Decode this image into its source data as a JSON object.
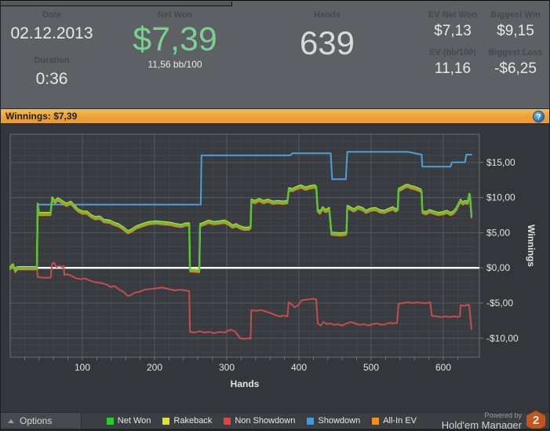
{
  "header": {
    "date_label": "Date",
    "date_value": "02.12.2013",
    "duration_label": "Duration",
    "duration_value": "0:36",
    "net_won_label": "Net Won",
    "net_won_value": "$7,39",
    "net_won_sub": "11,56 bb/100",
    "hands_label": "Hands",
    "hands_value": "639",
    "ev_net_won_label": "EV Net Won",
    "ev_net_won_value": "$7,13",
    "biggest_win_label": "Biggest Win",
    "biggest_win_value": "$9,15",
    "ev_bb_label": "EV (bb/100)",
    "ev_bb_value": "11,16",
    "biggest_loss_label": "Biggest Loss",
    "biggest_loss_value": "-$6,25"
  },
  "banner": {
    "text": "Winnings: $7,39",
    "help_icon": "?"
  },
  "chart_data": {
    "type": "line",
    "xlabel": "Hands",
    "ylabel": "Winnings",
    "xlim": [
      0,
      650
    ],
    "ylim": [
      -12.7,
      19.0
    ],
    "x_ticks": [
      100,
      200,
      300,
      400,
      500,
      600
    ],
    "y_ticks": [
      {
        "v": 15,
        "label": "$15,00"
      },
      {
        "v": 10,
        "label": "$10,00"
      },
      {
        "v": 5,
        "label": "$5,00"
      },
      {
        "v": 0,
        "label": "$0,00"
      },
      {
        "v": -5,
        "label": "-$5,00"
      },
      {
        "v": -10,
        "label": "-$10,00"
      }
    ],
    "grid": {
      "x_minor": 20,
      "x_major": 100,
      "y_minor": 1,
      "y_major": 5,
      "on": true
    },
    "zero_line": {
      "value": 0,
      "color": "#ffffff"
    },
    "legend_position": "bottom",
    "colors": {
      "plot_bg": "#383c40",
      "panel_bg": "#33373b",
      "grid_minor": "#41454a",
      "grid_major": "#55585c",
      "border": "#62656a",
      "tick_text": "#e2e3e5"
    },
    "series": [
      {
        "name": "Showdown",
        "color": "#4e9fd6",
        "width": 2,
        "points": [
          [
            0,
            0
          ],
          [
            37,
            0
          ],
          [
            38,
            9.0
          ],
          [
            264,
            9.0
          ],
          [
            265,
            16.0
          ],
          [
            388,
            16.0
          ],
          [
            391,
            16.3
          ],
          [
            444,
            16.3
          ],
          [
            446,
            12.6
          ],
          [
            465,
            12.6
          ],
          [
            467,
            16.5
          ],
          [
            551,
            16.5
          ],
          [
            570,
            16.1
          ],
          [
            571,
            14.4
          ],
          [
            610,
            14.4
          ],
          [
            612,
            15.0
          ],
          [
            630,
            15.0
          ],
          [
            632,
            16.1
          ],
          [
            639,
            16.1
          ]
        ]
      },
      {
        "name": "Non Showdown",
        "color": "#ca4b4b",
        "width": 2,
        "points": [
          [
            0,
            0
          ],
          [
            37,
            0
          ],
          [
            38,
            -1.3
          ],
          [
            45,
            -1.4
          ],
          [
            56,
            -1.4
          ],
          [
            58,
            0.6
          ],
          [
            61,
            0.7
          ],
          [
            64,
            0.1
          ],
          [
            68,
            0.3
          ],
          [
            72,
            0.1
          ],
          [
            74,
            0.3
          ],
          [
            75,
            -1.0
          ],
          [
            80,
            -0.9
          ],
          [
            86,
            -1.2
          ],
          [
            92,
            -1.5
          ],
          [
            98,
            -1.6
          ],
          [
            104,
            -1.5
          ],
          [
            110,
            -1.8
          ],
          [
            116,
            -2.0
          ],
          [
            122,
            -2.1
          ],
          [
            128,
            -2.2
          ],
          [
            134,
            -2.4
          ],
          [
            139,
            -2.7
          ],
          [
            145,
            -2.6
          ],
          [
            151,
            -3.1
          ],
          [
            157,
            -3.4
          ],
          [
            163,
            -4.0
          ],
          [
            168,
            -3.8
          ],
          [
            173,
            -3.5
          ],
          [
            179,
            -3.4
          ],
          [
            186,
            -3.1
          ],
          [
            194,
            -3.0
          ],
          [
            203,
            -2.9
          ],
          [
            211,
            -2.8
          ],
          [
            219,
            -3.0
          ],
          [
            227,
            -3.2
          ],
          [
            235,
            -3.1
          ],
          [
            242,
            -3.2
          ],
          [
            248,
            -3.3
          ],
          [
            249,
            -9.1
          ],
          [
            256,
            -9.2
          ],
          [
            262,
            -9.0
          ],
          [
            269,
            -9.2
          ],
          [
            276,
            -9.1
          ],
          [
            283,
            -9.3
          ],
          [
            290,
            -9.1
          ],
          [
            297,
            -9.2
          ],
          [
            302,
            -8.9
          ],
          [
            306,
            -8.8
          ],
          [
            311,
            -9.0
          ],
          [
            315,
            -9.5
          ],
          [
            318,
            -10.0
          ],
          [
            325,
            -10.1
          ],
          [
            331,
            -10.0
          ],
          [
            333,
            -10.1
          ],
          [
            334,
            -6.0
          ],
          [
            341,
            -6.1
          ],
          [
            348,
            -6.0
          ],
          [
            354,
            -6.2
          ],
          [
            360,
            -6.4
          ],
          [
            367,
            -6.7
          ],
          [
            373,
            -6.9
          ],
          [
            379,
            -6.8
          ],
          [
            384,
            -6.9
          ],
          [
            386,
            -4.9
          ],
          [
            390,
            -5.2
          ],
          [
            394,
            -5.6
          ],
          [
            399,
            -5.3
          ],
          [
            404,
            -4.6
          ],
          [
            412,
            -4.5
          ],
          [
            420,
            -4.4
          ],
          [
            424,
            -4.5
          ],
          [
            426,
            -7.9
          ],
          [
            430,
            -8.2
          ],
          [
            434,
            -7.7
          ],
          [
            439,
            -8.0
          ],
          [
            444,
            -7.9
          ],
          [
            449,
            -8.1
          ],
          [
            454,
            -8.0
          ],
          [
            460,
            -8.2
          ],
          [
            466,
            -7.9
          ],
          [
            472,
            -7.7
          ],
          [
            478,
            -7.9
          ],
          [
            484,
            -8.1
          ],
          [
            490,
            -8.0
          ],
          [
            496,
            -8.2
          ],
          [
            502,
            -8.0
          ],
          [
            508,
            -7.9
          ],
          [
            514,
            -8.1
          ],
          [
            520,
            -8.0
          ],
          [
            526,
            -7.8
          ],
          [
            531,
            -7.9
          ],
          [
            536,
            -7.8
          ],
          [
            538,
            -5.1
          ],
          [
            544,
            -5.0
          ],
          [
            551,
            -4.9
          ],
          [
            558,
            -5.0
          ],
          [
            564,
            -4.9
          ],
          [
            571,
            -5.0
          ],
          [
            577,
            -5.0
          ],
          [
            582,
            -4.9
          ],
          [
            584,
            -6.8
          ],
          [
            590,
            -6.9
          ],
          [
            597,
            -7.0
          ],
          [
            603,
            -6.9
          ],
          [
            609,
            -7.0
          ],
          [
            615,
            -6.9
          ],
          [
            621,
            -7.0
          ],
          [
            623,
            -6.9
          ],
          [
            624,
            -5.3
          ],
          [
            629,
            -5.4
          ],
          [
            633,
            -5.3
          ],
          [
            635,
            -5.2
          ],
          [
            636,
            -5.4
          ],
          [
            639,
            -8.7
          ]
        ]
      },
      {
        "name": "All-In EV",
        "color": "#dd8426",
        "width": 2,
        "same_as": "Net Won",
        "offset": -0.22,
        "end_value": 7.13
      },
      {
        "name": "Rakeback",
        "color": "#d8d838",
        "width": 2,
        "same_as": "Net Won",
        "offset": 0.14
      },
      {
        "name": "Net Won",
        "color": "#5cc437",
        "width": 2.4,
        "end_value": 7.39,
        "points": [
          [
            0,
            0
          ],
          [
            4,
            0.4
          ],
          [
            7,
            -0.4
          ],
          [
            10,
            0
          ],
          [
            37,
            0
          ],
          [
            38,
            9.0
          ],
          [
            40,
            7.7
          ],
          [
            56,
            7.7
          ],
          [
            58,
            9.9
          ],
          [
            62,
            9.4
          ],
          [
            66,
            9.8
          ],
          [
            72,
            9.4
          ],
          [
            78,
            9.0
          ],
          [
            84,
            9.3
          ],
          [
            90,
            8.6
          ],
          [
            94,
            8.2
          ],
          [
            100,
            7.9
          ],
          [
            106,
            7.9
          ],
          [
            112,
            7.4
          ],
          [
            118,
            7.1
          ],
          [
            124,
            7.2
          ],
          [
            130,
            6.7
          ],
          [
            138,
            6.6
          ],
          [
            144,
            6.3
          ],
          [
            150,
            6.1
          ],
          [
            156,
            5.7
          ],
          [
            163,
            5.1
          ],
          [
            169,
            5.4
          ],
          [
            175,
            5.8
          ],
          [
            183,
            6.1
          ],
          [
            192,
            6.4
          ],
          [
            202,
            6.5
          ],
          [
            212,
            6.4
          ],
          [
            222,
            6.3
          ],
          [
            230,
            6.1
          ],
          [
            237,
            6.0
          ],
          [
            243,
            6.2
          ],
          [
            248,
            6.2
          ],
          [
            249,
            -0.3
          ],
          [
            262,
            -0.4
          ],
          [
            263,
            6.1
          ],
          [
            268,
            6.3
          ],
          [
            275,
            6.6
          ],
          [
            282,
            6.4
          ],
          [
            290,
            6.5
          ],
          [
            297,
            6.6
          ],
          [
            303,
            6.3
          ],
          [
            308,
            5.9
          ],
          [
            313,
            6.1
          ],
          [
            318,
            5.8
          ],
          [
            324,
            5.6
          ],
          [
            330,
            5.6
          ],
          [
            333,
            5.8
          ],
          [
            334,
            9.6
          ],
          [
            339,
            9.4
          ],
          [
            345,
            9.7
          ],
          [
            351,
            9.4
          ],
          [
            357,
            9.6
          ],
          [
            364,
            9.3
          ],
          [
            371,
            9.4
          ],
          [
            378,
            9.3
          ],
          [
            384,
            9.4
          ],
          [
            386,
            11.2
          ],
          [
            391,
            11.1
          ],
          [
            397,
            11.4
          ],
          [
            403,
            11.6
          ],
          [
            409,
            11.3
          ],
          [
            415,
            11.5
          ],
          [
            422,
            11.6
          ],
          [
            424,
            11.4
          ],
          [
            426,
            8.2
          ],
          [
            429,
            7.9
          ],
          [
            433,
            8.5
          ],
          [
            437,
            8.1
          ],
          [
            442,
            8.4
          ],
          [
            445,
            4.9
          ],
          [
            458,
            4.8
          ],
          [
            465,
            4.9
          ],
          [
            466,
            5.1
          ],
          [
            467,
            8.7
          ],
          [
            471,
            8.5
          ],
          [
            476,
            8.2
          ],
          [
            482,
            8.6
          ],
          [
            488,
            8.4
          ],
          [
            493,
            8.0
          ],
          [
            499,
            8.3
          ],
          [
            506,
            8.4
          ],
          [
            512,
            8.1
          ],
          [
            518,
            8.0
          ],
          [
            525,
            8.3
          ],
          [
            530,
            8.5
          ],
          [
            534,
            8.2
          ],
          [
            537,
            8.4
          ],
          [
            538,
            11.1
          ],
          [
            542,
            11.3
          ],
          [
            547,
            11.6
          ],
          [
            551,
            11.7
          ],
          [
            555,
            11.5
          ],
          [
            560,
            11.4
          ],
          [
            565,
            11.2
          ],
          [
            569,
            11.0
          ],
          [
            570,
            10.7
          ],
          [
            571,
            8.0
          ],
          [
            576,
            7.8
          ],
          [
            581,
            8.1
          ],
          [
            587,
            7.9
          ],
          [
            593,
            7.7
          ],
          [
            599,
            7.8
          ],
          [
            605,
            8.0
          ],
          [
            610,
            7.7
          ],
          [
            614,
            7.9
          ],
          [
            618,
            8.4
          ],
          [
            621,
            9.0
          ],
          [
            624,
            9.6
          ],
          [
            627,
            9.2
          ],
          [
            630,
            9.4
          ],
          [
            634,
            9.3
          ],
          [
            636,
            10.4
          ],
          [
            637,
            10.2
          ],
          [
            639,
            7.39
          ]
        ]
      }
    ]
  },
  "footer": {
    "options_label": "Options",
    "legend": [
      {
        "label": "Net Won",
        "color": "#2ecc2e"
      },
      {
        "label": "Rakeback",
        "color": "#e2e22e"
      },
      {
        "label": "Non Showdown",
        "color": "#de4545"
      },
      {
        "label": "Showdown",
        "color": "#3b9ee4"
      },
      {
        "label": "All-In EV",
        "color": "#f0901f"
      }
    ],
    "powered_by": "Powered by",
    "brand": "Hold'em Manager",
    "brand_badge": "2"
  }
}
